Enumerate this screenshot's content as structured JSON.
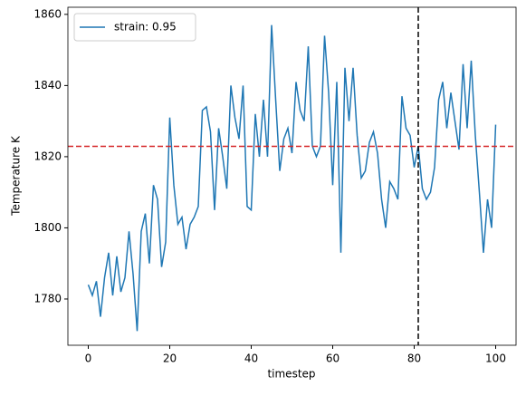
{
  "chart_data": {
    "type": "line",
    "x_label": "timestep",
    "y_label": "Temperature K",
    "x": [
      0,
      1,
      2,
      3,
      4,
      5,
      6,
      7,
      8,
      9,
      10,
      11,
      12,
      13,
      14,
      15,
      16,
      17,
      18,
      19,
      20,
      21,
      22,
      23,
      24,
      25,
      26,
      27,
      28,
      29,
      30,
      31,
      32,
      33,
      34,
      35,
      36,
      37,
      38,
      39,
      40,
      41,
      42,
      43,
      44,
      45,
      46,
      47,
      48,
      49,
      50,
      51,
      52,
      53,
      54,
      55,
      56,
      57,
      58,
      59,
      60,
      61,
      62,
      63,
      64,
      65,
      66,
      67,
      68,
      69,
      70,
      71,
      72,
      73,
      74,
      75,
      76,
      77,
      78,
      79,
      80,
      81,
      82,
      83,
      84,
      85,
      86,
      87,
      88,
      89,
      90,
      91,
      92,
      93,
      94,
      95,
      96,
      97,
      98,
      99,
      100
    ],
    "series": [
      {
        "name": "strain: 0.95",
        "color": "#1f77b4",
        "values": [
          1784,
          1781,
          1785,
          1775,
          1786,
          1793,
          1781,
          1792,
          1782,
          1786,
          1799,
          1787,
          1771,
          1799,
          1804,
          1790,
          1812,
          1808,
          1789,
          1796,
          1831,
          1812,
          1801,
          1803,
          1794,
          1801,
          1803,
          1806,
          1833,
          1834,
          1827,
          1805,
          1828,
          1820,
          1811,
          1840,
          1831,
          1825,
          1840,
          1806,
          1805,
          1832,
          1820,
          1836,
          1820,
          1857,
          1836,
          1816,
          1825,
          1828,
          1821,
          1841,
          1833,
          1830,
          1851,
          1823,
          1820,
          1823,
          1854,
          1838,
          1812,
          1841,
          1793,
          1845,
          1830,
          1845,
          1826,
          1814,
          1816,
          1824,
          1827,
          1821,
          1808,
          1800,
          1813,
          1811,
          1808,
          1837,
          1828,
          1826,
          1817,
          1823,
          1811,
          1808,
          1810,
          1817,
          1836,
          1841,
          1828,
          1838,
          1830,
          1822,
          1846,
          1828,
          1847,
          1826,
          1810,
          1793,
          1808,
          1800,
          1829
        ]
      }
    ],
    "hline": {
      "value": 1822.9,
      "color": "#d62728"
    },
    "vline": {
      "value": 81,
      "color": "#000000"
    },
    "xlim": [
      -5,
      105
    ],
    "ylim": [
      1767,
      1862
    ],
    "xticks": [
      0,
      20,
      40,
      60,
      80,
      100
    ],
    "yticks": [
      1780,
      1800,
      1820,
      1840,
      1860
    ],
    "legend": "upper left"
  }
}
